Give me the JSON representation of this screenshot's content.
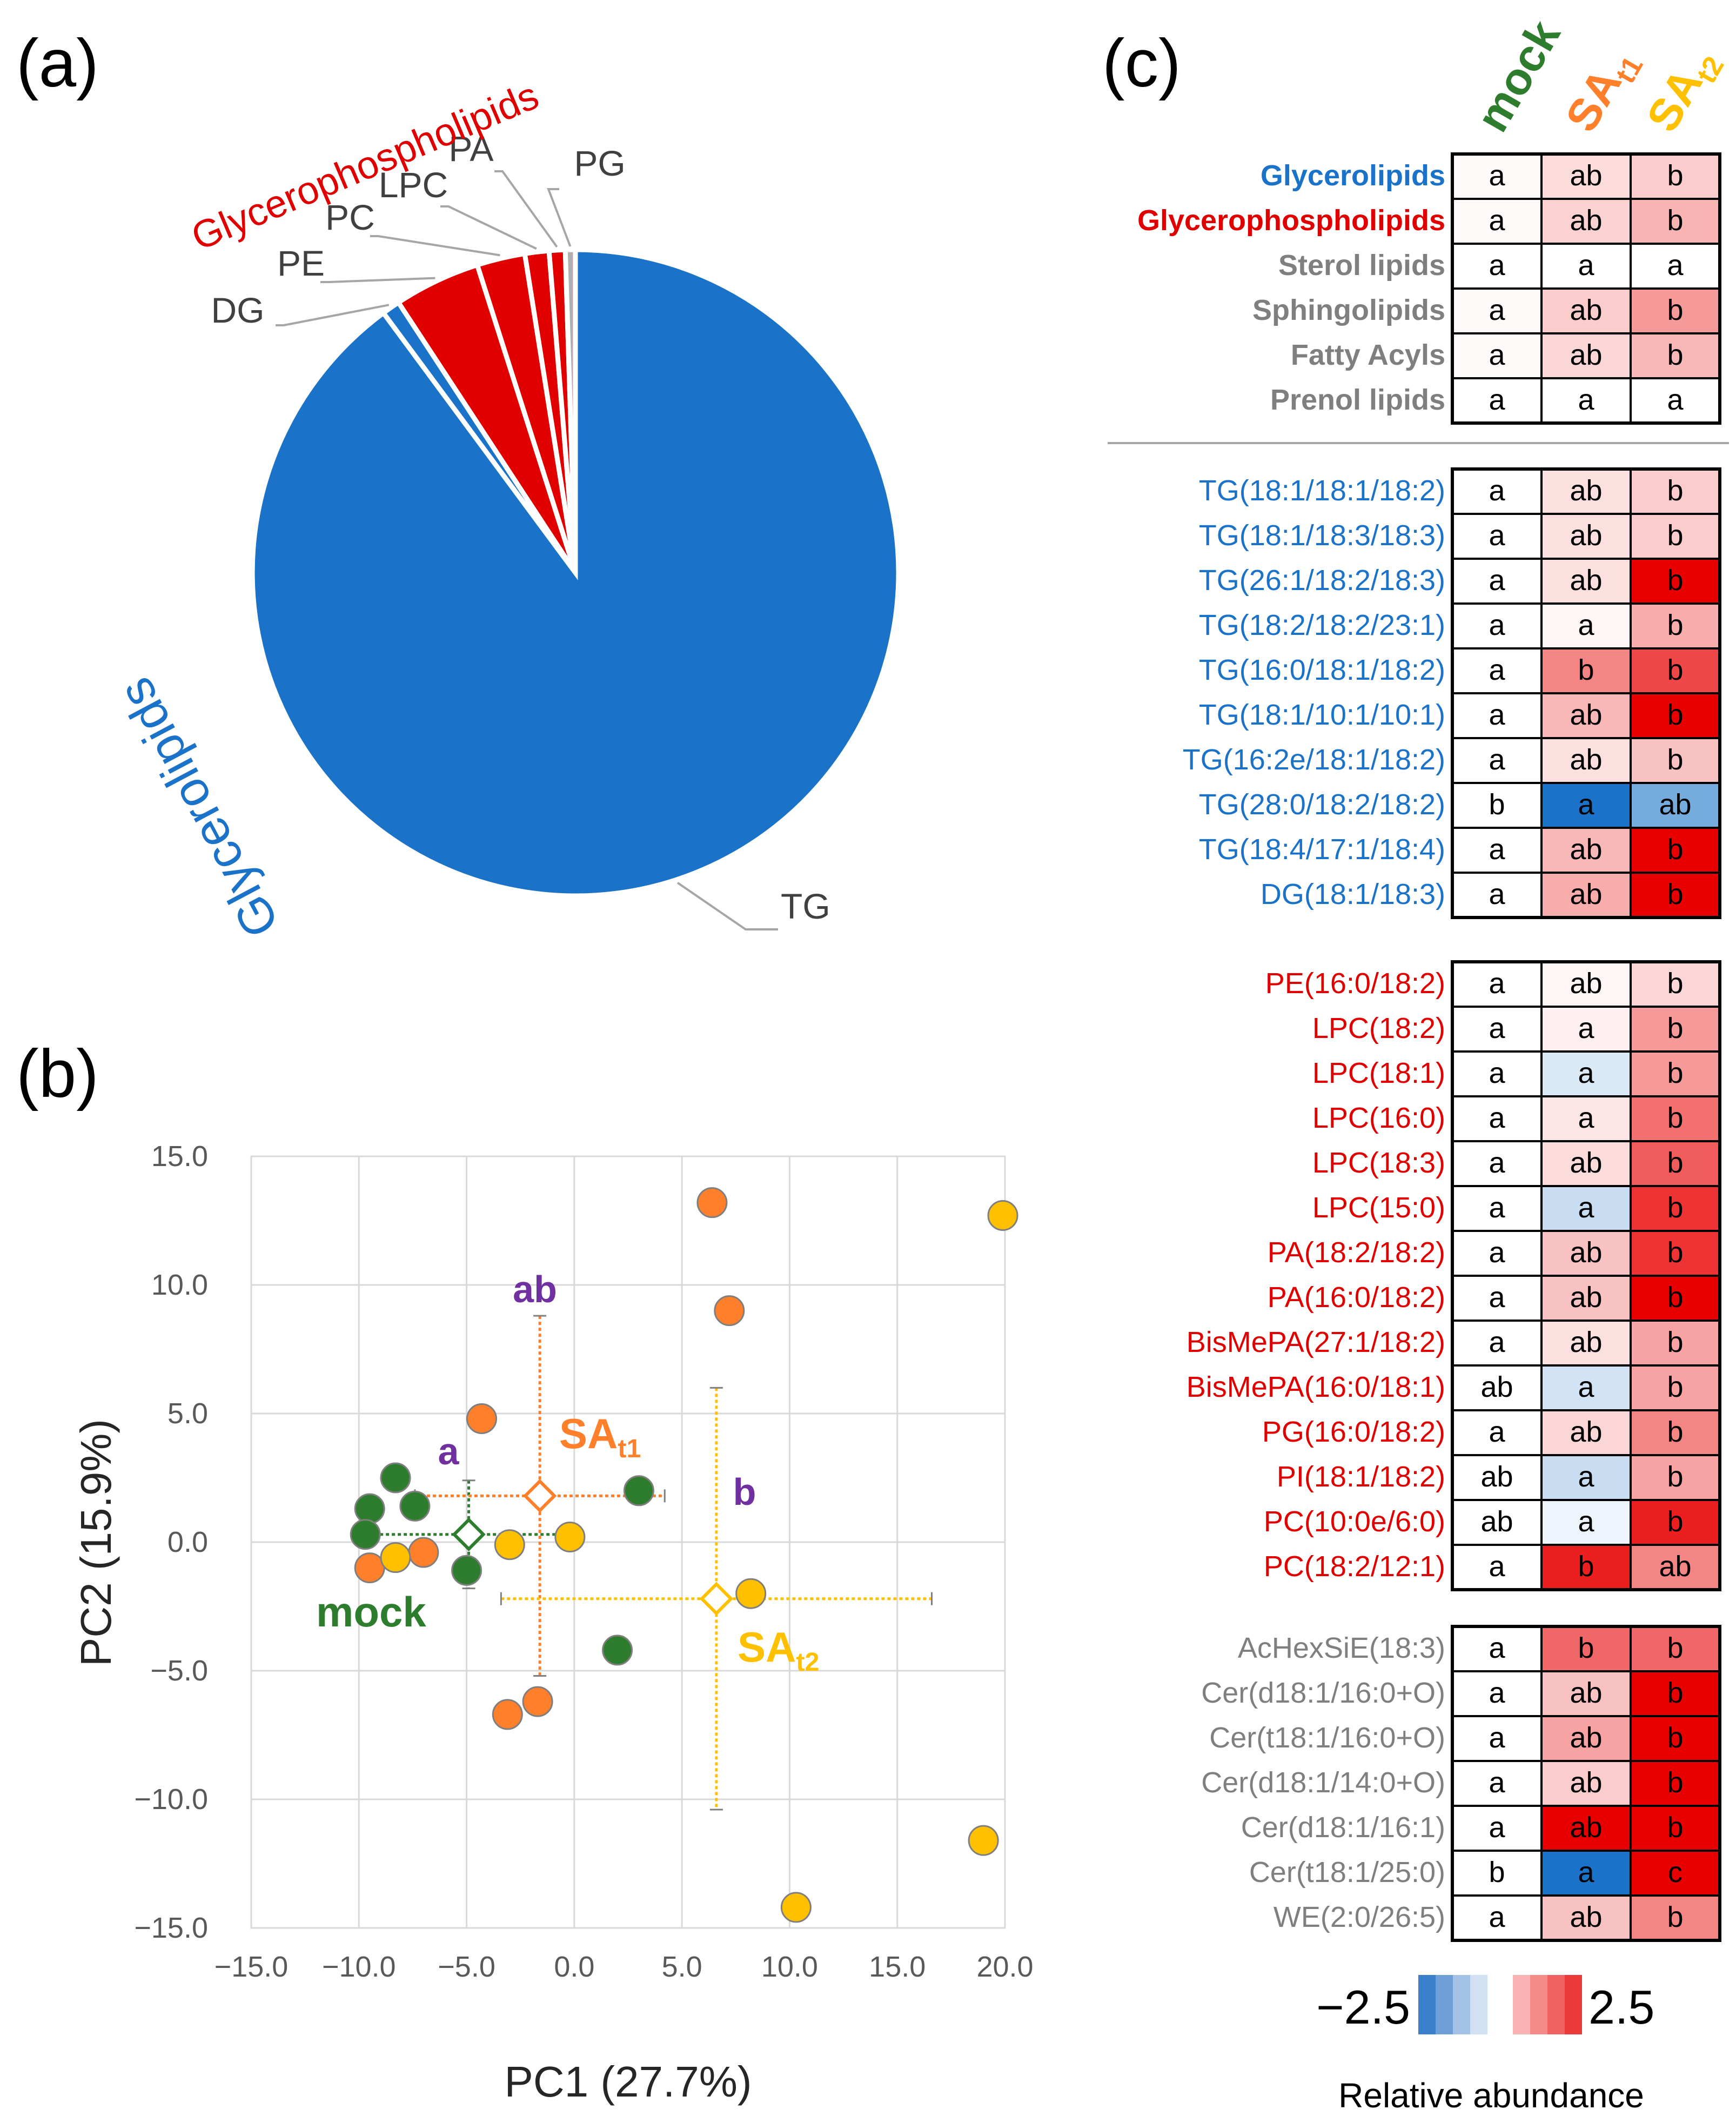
{
  "panel_labels": [
    "(a)",
    "(b)",
    "(c)"
  ],
  "chart_data": [
    {
      "panel": "(a)",
      "type": "pie",
      "groups": [
        {
          "name": "Glycerophospholipids",
          "color": "#e00000"
        },
        {
          "name": "Glycerolipids",
          "color": "#1a73c8"
        }
      ],
      "slices": [
        {
          "label": "TG",
          "value": 89.6,
          "group": "Glycerolipids",
          "color": "#1a73c8"
        },
        {
          "label": "DG",
          "value": 0.9,
          "group": "Glycerolipids",
          "color": "#1a73c8"
        },
        {
          "label": "PE",
          "value": 4.3,
          "group": "Glycerophospholipids",
          "color": "#e00000"
        },
        {
          "label": "PC",
          "value": 2.4,
          "group": "Glycerophospholipids",
          "color": "#e00000"
        },
        {
          "label": "LPC",
          "value": 1.2,
          "group": "Glycerophospholipids",
          "color": "#e00000"
        },
        {
          "label": "PA",
          "value": 0.8,
          "group": "Glycerophospholipids",
          "color": "#e00000"
        },
        {
          "label": "PG",
          "value": 0.5,
          "group": "Glycerophospholipids",
          "color": "#b0b0b0"
        }
      ]
    },
    {
      "panel": "(b)",
      "type": "scatter",
      "xlabel": "PC1 (27.7%)",
      "ylabel": "PC2 (15.9%)",
      "xlim": [
        -15,
        20
      ],
      "ylim": [
        -15,
        15
      ],
      "xticks": [
        -15,
        -10,
        -5,
        0,
        5,
        10,
        15,
        20
      ],
      "yticks": [
        -15,
        -10,
        -5,
        0,
        5,
        10,
        15
      ],
      "xtick_labels": [
        "−15.0",
        "−10.0",
        "−5.0",
        "0.0",
        "5.0",
        "10.0",
        "15.0",
        "20.0"
      ],
      "ytick_labels": [
        "−15.0",
        "−10.0",
        "−5.0",
        "0.0",
        "5.0",
        "10.0",
        "15.0"
      ],
      "grid": true,
      "series": [
        {
          "name": "mock",
          "color": "#2e7d2e",
          "letter": "a",
          "points": [
            [
              -9.5,
              1.3
            ],
            [
              -8.3,
              2.5
            ],
            [
              -7.4,
              1.4
            ],
            [
              -9.7,
              0.3
            ],
            [
              -5.0,
              -1.1
            ],
            [
              3.0,
              2.0
            ],
            [
              2.0,
              -4.2
            ]
          ],
          "centroid": {
            "x": -4.9,
            "y": 0.3,
            "xerr": 4.4,
            "yerr": 2.1
          }
        },
        {
          "name": "SA",
          "sub": "t1",
          "color": "#ff7f2a",
          "letter": "ab",
          "points": [
            [
              -4.3,
              4.8
            ],
            [
              -9.5,
              -1.0
            ],
            [
              -7.0,
              -0.4
            ],
            [
              -3.1,
              -6.7
            ],
            [
              -1.7,
              -6.2
            ],
            [
              6.4,
              13.2
            ],
            [
              7.2,
              9.0
            ]
          ],
          "centroid": {
            "x": -1.6,
            "y": 1.8,
            "xerr": 5.8,
            "yerr": 7.0
          }
        },
        {
          "name": "SA",
          "sub": "t2",
          "color": "#ffc000",
          "letter": "b",
          "points": [
            [
              -8.3,
              -0.6
            ],
            [
              -3.0,
              -0.1
            ],
            [
              -0.2,
              0.2
            ],
            [
              8.2,
              -2.0
            ],
            [
              10.3,
              -14.2
            ],
            [
              19.0,
              -11.6
            ],
            [
              19.9,
              12.7
            ]
          ],
          "centroid": {
            "x": 6.6,
            "y": -2.2,
            "xerr": 10.0,
            "yerr": 8.2
          }
        }
      ]
    },
    {
      "panel": "(c)",
      "type": "heatmap",
      "columns": [
        {
          "label": "mock",
          "sub": "",
          "color": "#2e7d2e"
        },
        {
          "label": "SA",
          "sub": "t1",
          "color": "#ff7f2a"
        },
        {
          "label": "SA",
          "sub": "t2",
          "color": "#ffc000"
        }
      ],
      "scale": {
        "min": -2.5,
        "max": 2.5,
        "min_label": "−2.5",
        "max_label": "2.5",
        "title": "Relative abundance"
      },
      "blocks": [
        {
          "rows": [
            {
              "label": "Glycerolipids",
              "bold": true,
              "color": "#1a73c8",
              "cells": [
                [
                  "a",
                  0.05
                ],
                [
                  "ab",
                  0.35
                ],
                [
                  "b",
                  0.5
                ]
              ]
            },
            {
              "label": "Glycerophospholipids",
              "bold": true,
              "color": "#e00000",
              "cells": [
                [
                  "a",
                  0.05
                ],
                [
                  "ab",
                  0.45
                ],
                [
                  "b",
                  0.75
                ]
              ]
            },
            {
              "label": "Sterol lipids",
              "bold": true,
              "color": "#7f7f7f",
              "cells": [
                [
                  "a",
                  0.0
                ],
                [
                  "a",
                  0.0
                ],
                [
                  "a",
                  0.0
                ]
              ]
            },
            {
              "label": "Sphingolipids",
              "bold": true,
              "color": "#7f7f7f",
              "cells": [
                [
                  "a",
                  0.05
                ],
                [
                  "ab",
                  0.5
                ],
                [
                  "b",
                  1.0
                ]
              ]
            },
            {
              "label": "Fatty Acyls",
              "bold": true,
              "color": "#7f7f7f",
              "cells": [
                [
                  "a",
                  0.05
                ],
                [
                  "ab",
                  0.4
                ],
                [
                  "b",
                  0.7
                ]
              ]
            },
            {
              "label": "Prenol lipids",
              "bold": true,
              "color": "#7f7f7f",
              "cells": [
                [
                  "a",
                  0.0
                ],
                [
                  "a",
                  0.0
                ],
                [
                  "a",
                  0.0
                ]
              ]
            }
          ]
        },
        {
          "rows": [
            {
              "label": "TG(18:1/18:1/18:2)",
              "color": "#1a73c8",
              "cells": [
                [
                  "a",
                  0.0
                ],
                [
                  "ab",
                  0.3
                ],
                [
                  "b",
                  0.5
                ]
              ]
            },
            {
              "label": "TG(18:1/18:3/18:3)",
              "color": "#1a73c8",
              "cells": [
                [
                  "a",
                  0.0
                ],
                [
                  "ab",
                  0.3
                ],
                [
                  "b",
                  0.5
                ]
              ]
            },
            {
              "label": "TG(26:1/18:2/18:3)",
              "color": "#1a73c8",
              "cells": [
                [
                  "a",
                  0.0
                ],
                [
                  "ab",
                  0.3
                ],
                [
                  "b",
                  2.5
                ]
              ]
            },
            {
              "label": "TG(18:2/18:2/23:1)",
              "color": "#1a73c8",
              "cells": [
                [
                  "a",
                  0.0
                ],
                [
                  "a",
                  0.1
                ],
                [
                  "b",
                  0.8
                ]
              ]
            },
            {
              "label": "TG(16:0/18:1/18:2)",
              "color": "#1a73c8",
              "cells": [
                [
                  "a",
                  0.0
                ],
                [
                  "b",
                  1.2
                ],
                [
                  "b",
                  1.8
                ]
              ]
            },
            {
              "label": "TG(18:1/10:1/10:1)",
              "color": "#1a73c8",
              "cells": [
                [
                  "a",
                  0.0
                ],
                [
                  "ab",
                  0.7
                ],
                [
                  "b",
                  2.5
                ]
              ]
            },
            {
              "label": "TG(16:2e/18:1/18:2)",
              "color": "#1a73c8",
              "cells": [
                [
                  "a",
                  0.0
                ],
                [
                  "ab",
                  0.3
                ],
                [
                  "b",
                  0.6
                ]
              ]
            },
            {
              "label": "TG(28:0/18:2/18:2)",
              "color": "#1a73c8",
              "cells": [
                [
                  "b",
                  0.0
                ],
                [
                  "a",
                  -2.5
                ],
                [
                  "ab",
                  -1.5
                ]
              ]
            },
            {
              "label": "TG(18:4/17:1/18:4)",
              "color": "#1a73c8",
              "cells": [
                [
                  "a",
                  0.0
                ],
                [
                  "ab",
                  0.7
                ],
                [
                  "b",
                  2.5
                ]
              ]
            },
            {
              "label": "DG(18:1/18:3)",
              "color": "#1a73c8",
              "cells": [
                [
                  "a",
                  0.0
                ],
                [
                  "ab",
                  0.8
                ],
                [
                  "b",
                  2.5
                ]
              ]
            }
          ]
        },
        {
          "rows": [
            {
              "label": "PE(16:0/18:2)",
              "color": "#e00000",
              "cells": [
                [
                  "a",
                  0.0
                ],
                [
                  "ab",
                  0.1
                ],
                [
                  "b",
                  0.4
                ]
              ]
            },
            {
              "label": "LPC(18:2)",
              "color": "#e00000",
              "cells": [
                [
                  "a",
                  0.0
                ],
                [
                  "a",
                  0.15
                ],
                [
                  "b",
                  1.0
                ]
              ]
            },
            {
              "label": "LPC(18:1)",
              "color": "#e00000",
              "cells": [
                [
                  "a",
                  0.0
                ],
                [
                  "a",
                  -0.4
                ],
                [
                  "b",
                  1.0
                ]
              ]
            },
            {
              "label": "LPC(16:0)",
              "color": "#e00000",
              "cells": [
                [
                  "a",
                  0.0
                ],
                [
                  "a",
                  0.25
                ],
                [
                  "b",
                  1.4
                ]
              ]
            },
            {
              "label": "LPC(18:3)",
              "color": "#e00000",
              "cells": [
                [
                  "a",
                  0.0
                ],
                [
                  "ab",
                  0.35
                ],
                [
                  "b",
                  1.6
                ]
              ]
            },
            {
              "label": "LPC(15:0)",
              "color": "#e00000",
              "cells": [
                [
                  "a",
                  0.0
                ],
                [
                  "a",
                  -0.6
                ],
                [
                  "b",
                  2.0
                ]
              ]
            },
            {
              "label": "PA(18:2/18:2)",
              "color": "#e00000",
              "cells": [
                [
                  "a",
                  0.0
                ],
                [
                  "ab",
                  0.6
                ],
                [
                  "b",
                  2.0
                ]
              ]
            },
            {
              "label": "PA(16:0/18:2)",
              "color": "#e00000",
              "cells": [
                [
                  "a",
                  0.0
                ],
                [
                  "ab",
                  0.6
                ],
                [
                  "b",
                  2.5
                ]
              ]
            },
            {
              "label": "BisMePA(27:1/18:2)",
              "color": "#e00000",
              "cells": [
                [
                  "a",
                  0.0
                ],
                [
                  "ab",
                  0.3
                ],
                [
                  "b",
                  0.9
                ]
              ]
            },
            {
              "label": "BisMePA(16:0/18:1)",
              "color": "#e00000",
              "cells": [
                [
                  "ab",
                  0.0
                ],
                [
                  "a",
                  -0.5
                ],
                [
                  "b",
                  0.9
                ]
              ]
            },
            {
              "label": "PG(16:0/18:2)",
              "color": "#e00000",
              "cells": [
                [
                  "a",
                  0.0
                ],
                [
                  "ab",
                  0.4
                ],
                [
                  "b",
                  1.2
                ]
              ]
            },
            {
              "label": "PI(18:1/18:2)",
              "color": "#e00000",
              "cells": [
                [
                  "ab",
                  0.0
                ],
                [
                  "a",
                  -0.6
                ],
                [
                  "b",
                  0.9
                ]
              ]
            },
            {
              "label": "PC(10:0e/6:0)",
              "color": "#e00000",
              "cells": [
                [
                  "ab",
                  0.0
                ],
                [
                  "a",
                  -0.2
                ],
                [
                  "b",
                  2.2
                ]
              ]
            },
            {
              "label": "PC(18:2/12:1)",
              "color": "#e00000",
              "cells": [
                [
                  "a",
                  0.0
                ],
                [
                  "b",
                  2.2
                ],
                [
                  "ab",
                  1.2
                ]
              ]
            }
          ]
        },
        {
          "rows": [
            {
              "label": "AcHexSiE(18:3)",
              "color": "#7f7f7f",
              "cells": [
                [
                  "a",
                  0.0
                ],
                [
                  "b",
                  1.5
                ],
                [
                  "b",
                  1.5
                ]
              ]
            },
            {
              "label": "Cer(d18:1/16:0+O)",
              "color": "#7f7f7f",
              "cells": [
                [
                  "a",
                  0.0
                ],
                [
                  "ab",
                  0.6
                ],
                [
                  "b",
                  2.5
                ]
              ]
            },
            {
              "label": "Cer(t18:1/16:0+O)",
              "color": "#7f7f7f",
              "cells": [
                [
                  "a",
                  0.0
                ],
                [
                  "ab",
                  0.9
                ],
                [
                  "b",
                  2.5
                ]
              ]
            },
            {
              "label": "Cer(d18:1/14:0+O)",
              "color": "#7f7f7f",
              "cells": [
                [
                  "a",
                  0.0
                ],
                [
                  "ab",
                  0.5
                ],
                [
                  "b",
                  2.5
                ]
              ]
            },
            {
              "label": "Cer(d18:1/16:1)",
              "color": "#7f7f7f",
              "cells": [
                [
                  "a",
                  0.0
                ],
                [
                  "ab",
                  2.5
                ],
                [
                  "b",
                  2.5
                ]
              ]
            },
            {
              "label": "Cer(t18:1/25:0)",
              "color": "#7f7f7f",
              "cells": [
                [
                  "b",
                  0.0
                ],
                [
                  "a",
                  -2.5
                ],
                [
                  "c",
                  2.5
                ]
              ]
            },
            {
              "label": "WE(2:0/26:5)",
              "color": "#7f7f7f",
              "cells": [
                [
                  "a",
                  0.0
                ],
                [
                  "ab",
                  0.6
                ],
                [
                  "b",
                  1.2
                ]
              ]
            }
          ]
        }
      ]
    }
  ]
}
